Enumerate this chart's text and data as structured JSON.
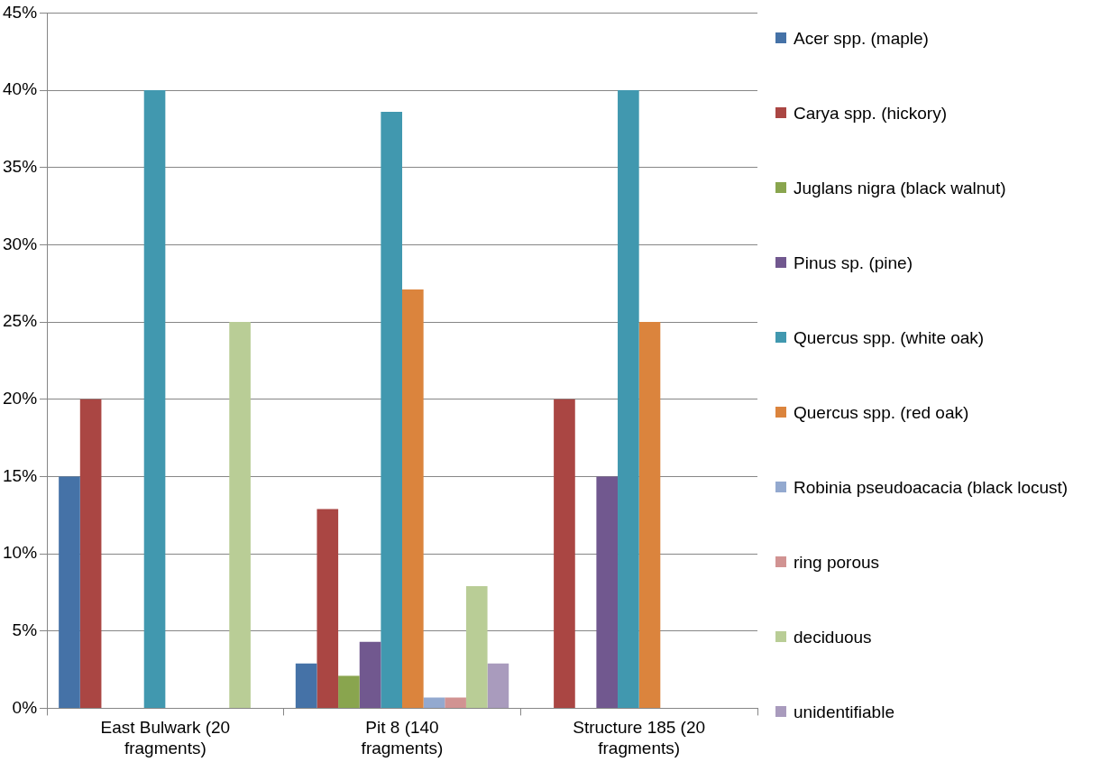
{
  "chart_data": {
    "type": "bar",
    "categories": [
      "East Bulwark (20 fragments)",
      "Pit 8 (140 fragments)",
      "Structure 185 (20 fragments)"
    ],
    "series": [
      {
        "name": "Acer spp. (maple)",
        "color": "#4572a7",
        "values": [
          15,
          2.9,
          0
        ]
      },
      {
        "name": "Carya spp. (hickory)",
        "color": "#aa4643",
        "values": [
          20,
          12.9,
          20
        ]
      },
      {
        "name": "Juglans nigra (black walnut)",
        "color": "#89a54e",
        "values": [
          0,
          2.1,
          0
        ]
      },
      {
        "name": "Pinus sp. (pine)",
        "color": "#71588f",
        "values": [
          0,
          4.3,
          15
        ]
      },
      {
        "name": "Quercus spp. (white oak)",
        "color": "#4198af",
        "values": [
          40,
          38.6,
          40
        ]
      },
      {
        "name": "Quercus spp. (red oak)",
        "color": "#db843d",
        "values": [
          0,
          27.1,
          25
        ]
      },
      {
        "name": "Robinia pseudoacacia (black locust)",
        "color": "#93a9cf",
        "values": [
          0,
          0.7,
          0
        ]
      },
      {
        "name": "ring porous",
        "color": "#d19392",
        "values": [
          0,
          0.7,
          0
        ]
      },
      {
        "name": "deciduous",
        "color": "#b9cd96",
        "values": [
          25,
          7.9,
          0
        ]
      },
      {
        "name": "unidentifiable",
        "color": "#a99bbd",
        "values": [
          0,
          2.9,
          0
        ]
      }
    ],
    "ylim": [
      0,
      45
    ],
    "yticks": [
      {
        "value": 0,
        "label": "0%"
      },
      {
        "value": 5,
        "label": "5%"
      },
      {
        "value": 10,
        "label": "10%"
      },
      {
        "value": 15,
        "label": "15%"
      },
      {
        "value": 20,
        "label": "20%"
      },
      {
        "value": 25,
        "label": "25%"
      },
      {
        "value": 30,
        "label": "30%"
      },
      {
        "value": 35,
        "label": "35%"
      },
      {
        "value": 40,
        "label": "40%"
      },
      {
        "value": 45,
        "label": "45%"
      }
    ],
    "grid": "y",
    "legend": "right"
  }
}
